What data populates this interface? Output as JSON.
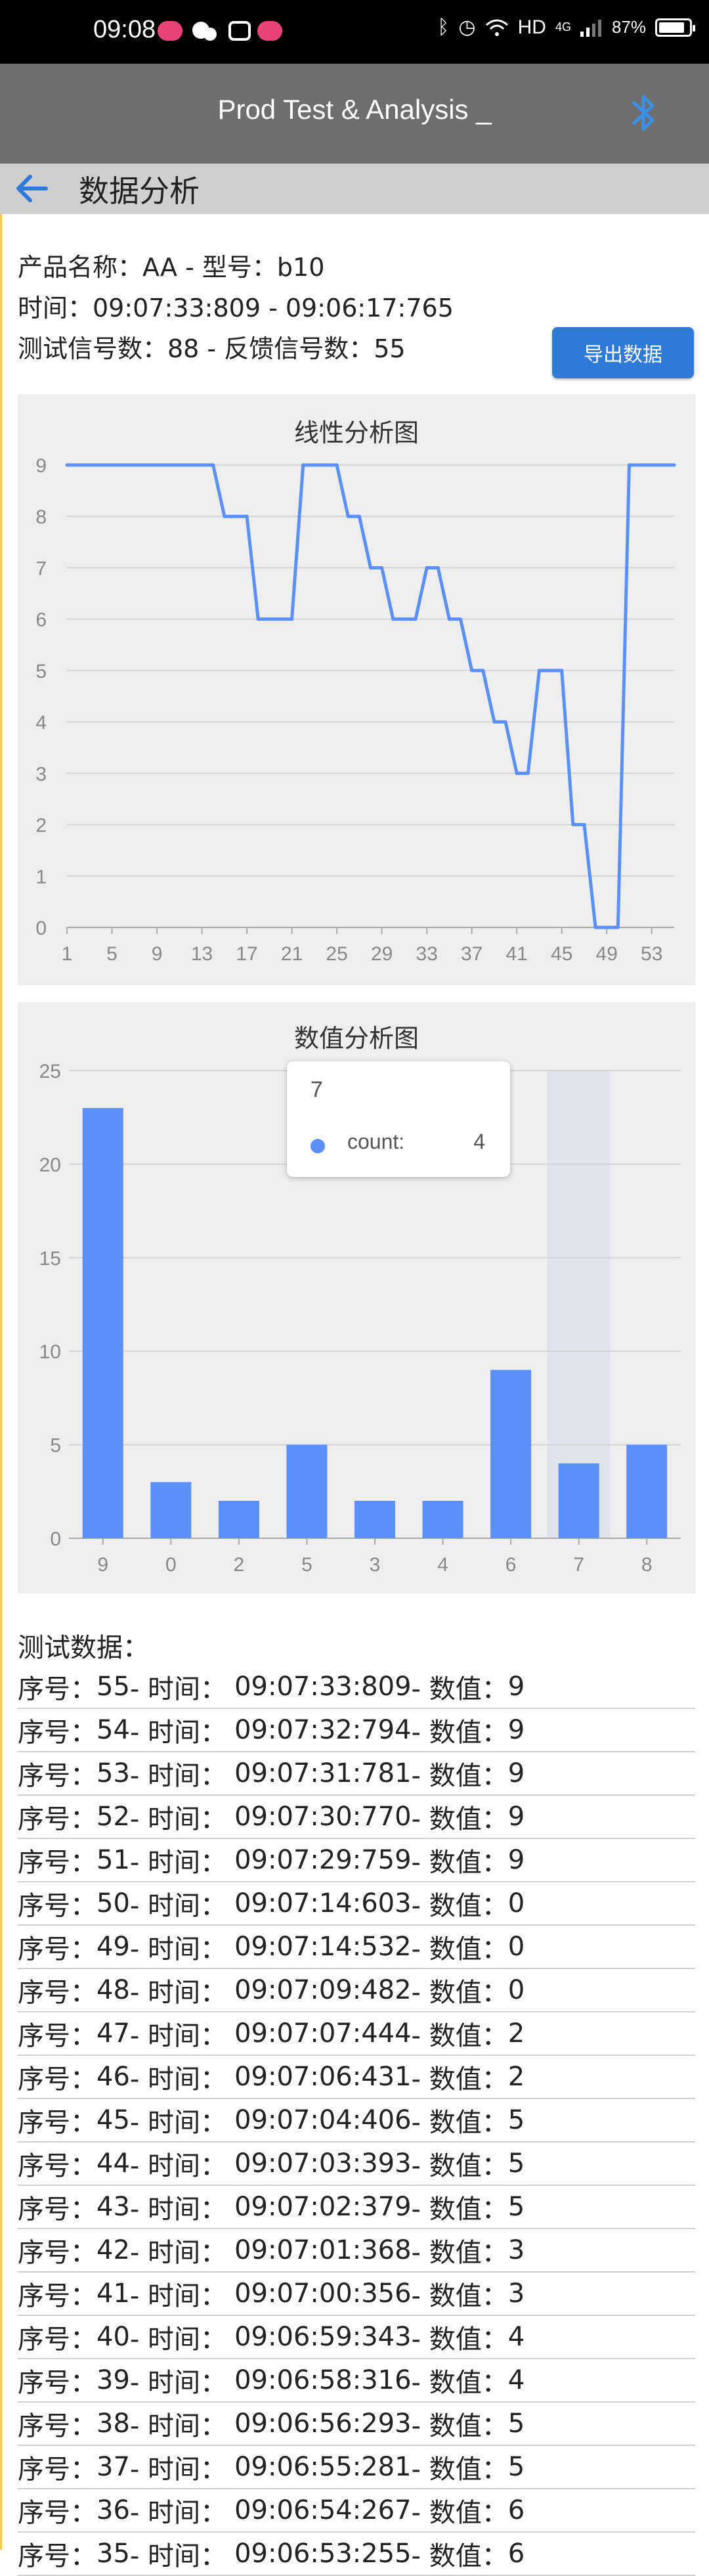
{
  "status_bar": {
    "time": "09:08",
    "network": "HD",
    "signal": "4G",
    "battery": "87%"
  },
  "app_bar": {
    "title": "Prod Test & Analysis _"
  },
  "page": {
    "title": "数据分析"
  },
  "info": {
    "product_line": "产品名称：AA - 型号：b10",
    "time_line": "时间：09:07:33:809 - 09:06:17:765",
    "count_line": "测试信号数：88 - 反馈信号数：55",
    "export_label": "导出数据"
  },
  "line_chart": {
    "title": "线性分析图",
    "chart_data": {
      "type": "line",
      "x": [
        1,
        2,
        3,
        4,
        5,
        6,
        7,
        8,
        9,
        10,
        11,
        12,
        13,
        14,
        15,
        16,
        17,
        18,
        19,
        20,
        21,
        22,
        23,
        24,
        25,
        26,
        27,
        28,
        29,
        30,
        31,
        32,
        33,
        34,
        35,
        36,
        37,
        38,
        39,
        40,
        41,
        42,
        43,
        44,
        45,
        46,
        47,
        48,
        49,
        50,
        51,
        52,
        53,
        54,
        55
      ],
      "y": [
        9,
        9,
        9,
        9,
        9,
        9,
        9,
        9,
        9,
        9,
        9,
        9,
        9,
        9,
        8,
        8,
        8,
        6,
        6,
        6,
        6,
        9,
        9,
        9,
        9,
        8,
        8,
        7,
        7,
        6,
        6,
        6,
        7,
        7,
        6,
        6,
        5,
        5,
        4,
        4,
        3,
        3,
        5,
        5,
        5,
        2,
        2,
        0,
        0,
        0,
        9,
        9,
        9,
        9,
        9
      ],
      "x_ticks": [
        "1",
        "5",
        "9",
        "13",
        "17",
        "21",
        "25",
        "29",
        "33",
        "37",
        "41",
        "45",
        "49",
        "53"
      ],
      "y_ticks": [
        "0",
        "1",
        "2",
        "3",
        "4",
        "5",
        "6",
        "7",
        "8",
        "9"
      ],
      "ylim": [
        0,
        9
      ],
      "color": "#5b8ff9",
      "grid": true
    }
  },
  "bar_chart": {
    "title": "数值分析图",
    "chart_data": {
      "type": "bar",
      "categories": [
        "9",
        "0",
        "2",
        "5",
        "3",
        "4",
        "6",
        "7",
        "8"
      ],
      "values": [
        23,
        3,
        2,
        5,
        2,
        2,
        9,
        4,
        5
      ],
      "y_ticks": [
        "0",
        "5",
        "10",
        "15",
        "20",
        "25"
      ],
      "ylim": [
        0,
        25
      ],
      "color": "#5b8ff9",
      "grid": true,
      "highlighted_category": "7"
    },
    "tooltip": {
      "category": "7",
      "label": "count:",
      "value": "4"
    }
  },
  "test_data": {
    "title": "测试数据：",
    "rows": [
      {
        "prefix": "序号：",
        "seq": "55",
        "time_label": " - 时间：",
        "time": "09:07:33:809",
        "value_label": " - 数值：",
        "value": "9"
      },
      {
        "prefix": "序号：",
        "seq": "54",
        "time_label": " - 时间：",
        "time": "09:07:32:794",
        "value_label": " - 数值：",
        "value": "9"
      },
      {
        "prefix": "序号：",
        "seq": "53",
        "time_label": " - 时间：",
        "time": "09:07:31:781",
        "value_label": " - 数值：",
        "value": "9"
      },
      {
        "prefix": "序号：",
        "seq": "52",
        "time_label": " - 时间：",
        "time": "09:07:30:770",
        "value_label": " - 数值：",
        "value": "9"
      },
      {
        "prefix": "序号：",
        "seq": "51",
        "time_label": " - 时间：",
        "time": "09:07:29:759",
        "value_label": " - 数值：",
        "value": "9"
      },
      {
        "prefix": "序号：",
        "seq": "50",
        "time_label": " - 时间：",
        "time": "09:07:14:603",
        "value_label": " - 数值：",
        "value": "0"
      },
      {
        "prefix": "序号：",
        "seq": "49",
        "time_label": " - 时间：",
        "time": "09:07:14:532",
        "value_label": " - 数值：",
        "value": "0"
      },
      {
        "prefix": "序号：",
        "seq": "48",
        "time_label": " - 时间：",
        "time": "09:07:09:482",
        "value_label": " - 数值：",
        "value": "0"
      },
      {
        "prefix": "序号：",
        "seq": "47",
        "time_label": " - 时间：",
        "time": "09:07:07:444",
        "value_label": " - 数值：",
        "value": "2"
      },
      {
        "prefix": "序号：",
        "seq": "46",
        "time_label": " - 时间：",
        "time": "09:07:06:431",
        "value_label": " - 数值：",
        "value": "2"
      },
      {
        "prefix": "序号：",
        "seq": "45",
        "time_label": " - 时间：",
        "time": "09:07:04:406",
        "value_label": " - 数值：",
        "value": "5"
      },
      {
        "prefix": "序号：",
        "seq": "44",
        "time_label": " - 时间：",
        "time": "09:07:03:393",
        "value_label": " - 数值：",
        "value": "5"
      },
      {
        "prefix": "序号：",
        "seq": "43",
        "time_label": " - 时间：",
        "time": "09:07:02:379",
        "value_label": " - 数值：",
        "value": "5"
      },
      {
        "prefix": "序号：",
        "seq": "42",
        "time_label": " - 时间：",
        "time": "09:07:01:368",
        "value_label": " - 数值：",
        "value": "3"
      },
      {
        "prefix": "序号：",
        "seq": "41",
        "time_label": " - 时间：",
        "time": "09:07:00:356",
        "value_label": " - 数值：",
        "value": "3"
      },
      {
        "prefix": "序号：",
        "seq": "40",
        "time_label": " - 时间：",
        "time": "09:06:59:343",
        "value_label": " - 数值：",
        "value": "4"
      },
      {
        "prefix": "序号：",
        "seq": "39",
        "time_label": " - 时间：",
        "time": "09:06:58:316",
        "value_label": " - 数值：",
        "value": "4"
      },
      {
        "prefix": "序号：",
        "seq": "38",
        "time_label": " - 时间：",
        "time": "09:06:56:293",
        "value_label": " - 数值：",
        "value": "5"
      },
      {
        "prefix": "序号：",
        "seq": "37",
        "time_label": " - 时间：",
        "time": "09:06:55:281",
        "value_label": " - 数值：",
        "value": "5"
      },
      {
        "prefix": "序号：",
        "seq": "36",
        "time_label": " - 时间：",
        "time": "09:06:54:267",
        "value_label": " - 数值：",
        "value": "6"
      },
      {
        "prefix": "序号：",
        "seq": "35",
        "time_label": " - 时间：",
        "time": "09:06:53:255",
        "value_label": " - 数值：",
        "value": "6"
      }
    ]
  },
  "colors": {
    "accent": "#2e7ad6",
    "series": "#5b8ff9",
    "app_bar": "#6e6e6e",
    "sub_bar": "#cfcfcf",
    "chart_bg": "#eeeeee"
  }
}
